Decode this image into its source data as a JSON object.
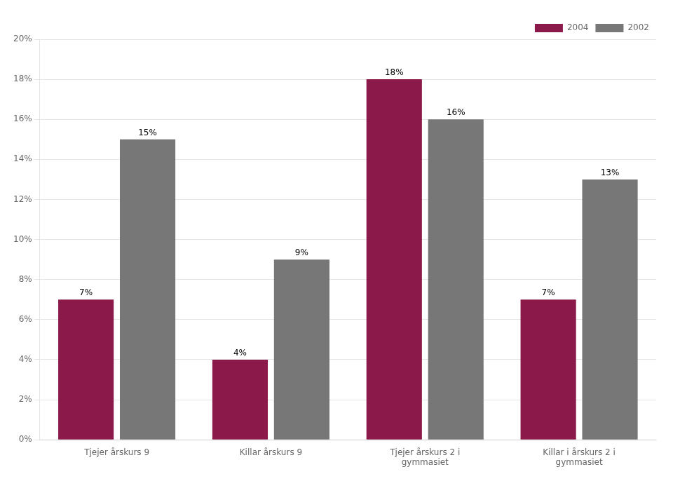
{
  "chart_data": {
    "type": "bar",
    "categories": [
      "Tjejer årskurs 9",
      "Killar årskurs 9",
      "Tjejer årskurs 2 i\ngymmasiet",
      "Killar i årskurs 2 i\ngymmasiet"
    ],
    "series": [
      {
        "name": "2004",
        "color": "#8B1A4A",
        "values": [
          7,
          4,
          18,
          7
        ],
        "value_labels": [
          "7%",
          "4%",
          "18%",
          "7%"
        ]
      },
      {
        "name": "2002",
        "color": "#777777",
        "values": [
          15,
          9,
          16,
          13
        ],
        "value_labels": [
          "15%",
          "9%",
          "16%",
          "13%"
        ]
      }
    ],
    "ylim": [
      0,
      20
    ],
    "yticks": [
      {
        "value": 0,
        "label": "0%"
      },
      {
        "value": 2,
        "label": "2%"
      },
      {
        "value": 4,
        "label": "4%"
      },
      {
        "value": 6,
        "label": "6%"
      },
      {
        "value": 8,
        "label": "8%"
      },
      {
        "value": 10,
        "label": "10%"
      },
      {
        "value": 12,
        "label": "12%"
      },
      {
        "value": 14,
        "label": "14%"
      },
      {
        "value": 16,
        "label": "16%"
      },
      {
        "value": 18,
        "label": "18%"
      },
      {
        "value": 20,
        "label": "20%"
      }
    ],
    "grid": true,
    "legend": "upper right",
    "data_labels": true
  }
}
